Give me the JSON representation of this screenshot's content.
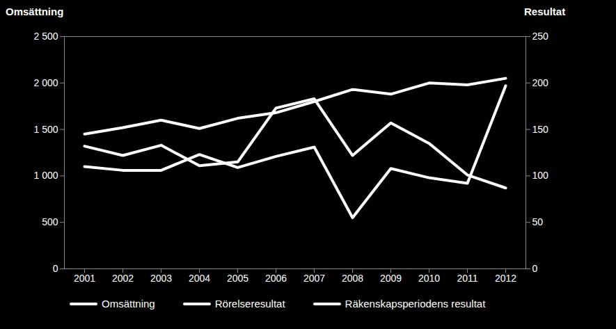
{
  "chart_data": {
    "type": "line",
    "ylabel": "Omsättning",
    "y2label": "Resultat",
    "x": [
      2001,
      2002,
      2003,
      2004,
      2005,
      2006,
      2007,
      2008,
      2009,
      2010,
      2011,
      2012
    ],
    "ylim": [
      0,
      2500
    ],
    "yticks": [
      0,
      500,
      {
        "value": 1000,
        "label": "1 000"
      },
      {
        "value": 1500,
        "label": "1 500"
      },
      {
        "value": 2000,
        "label": "2 000"
      },
      {
        "value": 2500,
        "label": "2 500"
      }
    ],
    "y2lim": [
      0,
      250
    ],
    "y2ticks": [
      0,
      50,
      100,
      150,
      200,
      250
    ],
    "legend": "bottom",
    "grid": false,
    "series": [
      {
        "name": "Omsättning",
        "color": "#ffffff",
        "values": [
          1450,
          1520,
          1600,
          1510,
          1620,
          1680,
          1800,
          1930,
          1880,
          2000,
          1980,
          2050
        ]
      },
      {
        "name": "Rörelseresultat",
        "color": "#ffffff",
        "axis": "y2",
        "values": [
          132,
          122,
          133,
          111,
          115,
          173,
          183,
          122,
          157,
          135,
          101,
          87
        ]
      },
      {
        "name": "Räkenskapsperiodens resultat",
        "color": "#ffffff",
        "axis": "y2",
        "values": [
          110,
          106,
          106,
          123,
          109,
          121,
          131,
          55,
          108,
          98,
          92,
          197
        ]
      }
    ]
  }
}
